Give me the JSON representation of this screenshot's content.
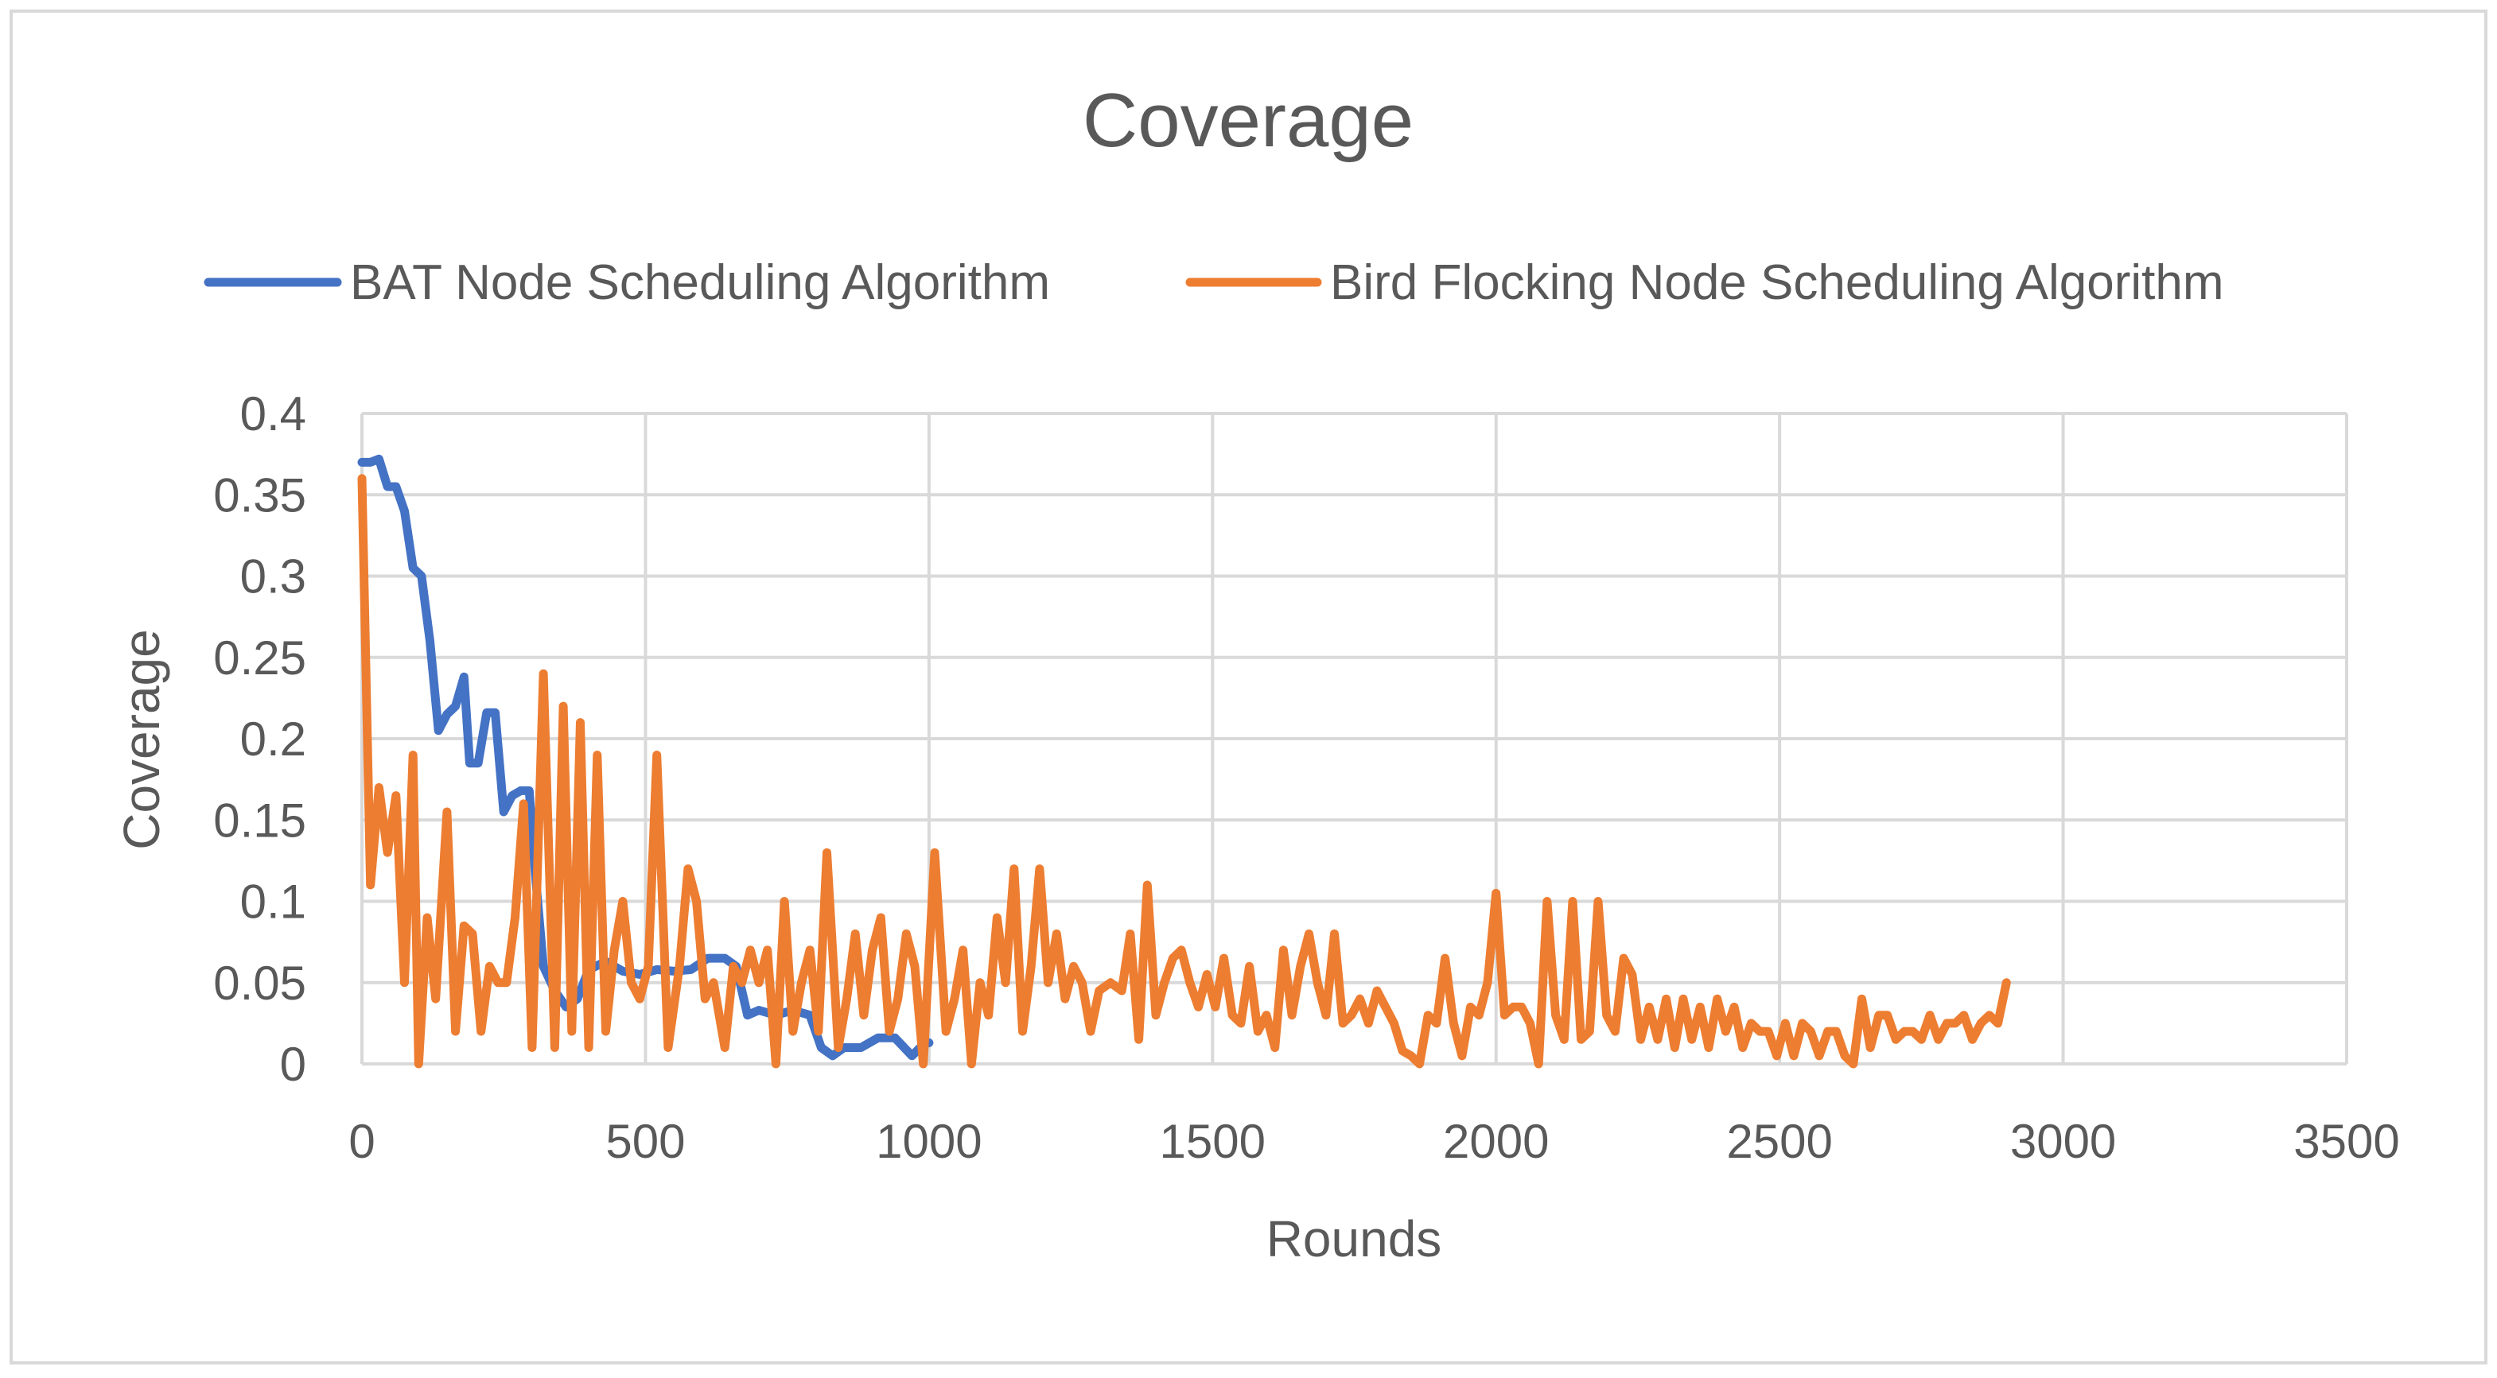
{
  "chart_data": {
    "type": "line",
    "title": "Coverage",
    "xlabel": "Rounds",
    "ylabel": "Coverage",
    "xlim": [
      0,
      3500
    ],
    "ylim": [
      0,
      0.4
    ],
    "x_ticks": [
      "0",
      "500",
      "1000",
      "1500",
      "2000",
      "2500",
      "3000",
      "3500"
    ],
    "y_ticks": [
      "0",
      "0.05",
      "0.1",
      "0.15",
      "0.2",
      "0.25",
      "0.3",
      "0.35",
      "0.4"
    ],
    "grid": true,
    "legend_position": "top",
    "series": [
      {
        "name": "BAT Node Scheduling Algorithm",
        "color": "#4472C4",
        "points": [
          [
            0,
            0.37
          ],
          [
            15,
            0.37
          ],
          [
            30,
            0.372
          ],
          [
            45,
            0.355
          ],
          [
            60,
            0.355
          ],
          [
            75,
            0.34
          ],
          [
            90,
            0.305
          ],
          [
            105,
            0.3
          ],
          [
            120,
            0.26
          ],
          [
            135,
            0.205
          ],
          [
            150,
            0.215
          ],
          [
            165,
            0.22
          ],
          [
            180,
            0.238
          ],
          [
            190,
            0.185
          ],
          [
            205,
            0.185
          ],
          [
            220,
            0.216
          ],
          [
            235,
            0.216
          ],
          [
            250,
            0.155
          ],
          [
            265,
            0.165
          ],
          [
            280,
            0.168
          ],
          [
            295,
            0.168
          ],
          [
            305,
            0.12
          ],
          [
            320,
            0.06
          ],
          [
            340,
            0.045
          ],
          [
            360,
            0.035
          ],
          [
            380,
            0.04
          ],
          [
            400,
            0.058
          ],
          [
            430,
            0.063
          ],
          [
            460,
            0.057
          ],
          [
            490,
            0.055
          ],
          [
            520,
            0.058
          ],
          [
            550,
            0.057
          ],
          [
            580,
            0.058
          ],
          [
            610,
            0.065
          ],
          [
            640,
            0.065
          ],
          [
            660,
            0.06
          ],
          [
            680,
            0.03
          ],
          [
            700,
            0.033
          ],
          [
            730,
            0.03
          ],
          [
            760,
            0.033
          ],
          [
            790,
            0.03
          ],
          [
            810,
            0.01
          ],
          [
            830,
            0.005
          ],
          [
            850,
            0.01
          ],
          [
            880,
            0.01
          ],
          [
            910,
            0.016
          ],
          [
            940,
            0.016
          ],
          [
            970,
            0.005
          ],
          [
            990,
            0.012
          ],
          [
            1000,
            0.013
          ]
        ]
      },
      {
        "name": "Bird Flocking Node Scheduling Algorithm",
        "color": "#ED7D31",
        "points": [
          [
            0,
            0.36
          ],
          [
            15,
            0.11
          ],
          [
            30,
            0.17
          ],
          [
            45,
            0.13
          ],
          [
            60,
            0.165
          ],
          [
            75,
            0.05
          ],
          [
            90,
            0.19
          ],
          [
            100,
            0.0
          ],
          [
            115,
            0.09
          ],
          [
            130,
            0.04
          ],
          [
            150,
            0.155
          ],
          [
            165,
            0.02
          ],
          [
            180,
            0.085
          ],
          [
            195,
            0.08
          ],
          [
            210,
            0.02
          ],
          [
            225,
            0.06
          ],
          [
            240,
            0.05
          ],
          [
            255,
            0.05
          ],
          [
            270,
            0.09
          ],
          [
            285,
            0.16
          ],
          [
            300,
            0.01
          ],
          [
            320,
            0.24
          ],
          [
            340,
            0.01
          ],
          [
            355,
            0.22
          ],
          [
            370,
            0.02
          ],
          [
            385,
            0.21
          ],
          [
            400,
            0.01
          ],
          [
            415,
            0.19
          ],
          [
            430,
            0.02
          ],
          [
            445,
            0.07
          ],
          [
            460,
            0.1
          ],
          [
            475,
            0.05
          ],
          [
            490,
            0.04
          ],
          [
            505,
            0.06
          ],
          [
            520,
            0.19
          ],
          [
            540,
            0.01
          ],
          [
            560,
            0.06
          ],
          [
            575,
            0.12
          ],
          [
            590,
            0.1
          ],
          [
            605,
            0.04
          ],
          [
            620,
            0.05
          ],
          [
            640,
            0.01
          ],
          [
            655,
            0.06
          ],
          [
            670,
            0.05
          ],
          [
            685,
            0.07
          ],
          [
            700,
            0.05
          ],
          [
            715,
            0.07
          ],
          [
            730,
            0.0
          ],
          [
            745,
            0.1
          ],
          [
            760,
            0.02
          ],
          [
            775,
            0.05
          ],
          [
            790,
            0.07
          ],
          [
            805,
            0.02
          ],
          [
            820,
            0.13
          ],
          [
            840,
            0.01
          ],
          [
            855,
            0.04
          ],
          [
            870,
            0.08
          ],
          [
            885,
            0.03
          ],
          [
            900,
            0.07
          ],
          [
            915,
            0.09
          ],
          [
            930,
            0.02
          ],
          [
            945,
            0.04
          ],
          [
            960,
            0.08
          ],
          [
            975,
            0.06
          ],
          [
            990,
            0.0
          ],
          [
            1010,
            0.13
          ],
          [
            1030,
            0.02
          ],
          [
            1045,
            0.04
          ],
          [
            1060,
            0.07
          ],
          [
            1075,
            0.0
          ],
          [
            1090,
            0.05
          ],
          [
            1105,
            0.03
          ],
          [
            1120,
            0.09
          ],
          [
            1135,
            0.05
          ],
          [
            1150,
            0.12
          ],
          [
            1165,
            0.02
          ],
          [
            1180,
            0.06
          ],
          [
            1195,
            0.12
          ],
          [
            1210,
            0.05
          ],
          [
            1225,
            0.08
          ],
          [
            1240,
            0.04
          ],
          [
            1255,
            0.06
          ],
          [
            1270,
            0.05
          ],
          [
            1285,
            0.02
          ],
          [
            1300,
            0.045
          ],
          [
            1320,
            0.05
          ],
          [
            1340,
            0.045
          ],
          [
            1355,
            0.08
          ],
          [
            1370,
            0.015
          ],
          [
            1385,
            0.11
          ],
          [
            1400,
            0.03
          ],
          [
            1415,
            0.05
          ],
          [
            1430,
            0.065
          ],
          [
            1445,
            0.07
          ],
          [
            1460,
            0.05
          ],
          [
            1475,
            0.035
          ],
          [
            1490,
            0.055
          ],
          [
            1505,
            0.035
          ],
          [
            1520,
            0.065
          ],
          [
            1535,
            0.03
          ],
          [
            1550,
            0.025
          ],
          [
            1565,
            0.06
          ],
          [
            1580,
            0.02
          ],
          [
            1595,
            0.03
          ],
          [
            1610,
            0.01
          ],
          [
            1625,
            0.07
          ],
          [
            1640,
            0.03
          ],
          [
            1655,
            0.06
          ],
          [
            1670,
            0.08
          ],
          [
            1685,
            0.05
          ],
          [
            1700,
            0.03
          ],
          [
            1715,
            0.08
          ],
          [
            1730,
            0.025
          ],
          [
            1745,
            0.03
          ],
          [
            1760,
            0.04
          ],
          [
            1775,
            0.025
          ],
          [
            1790,
            0.045
          ],
          [
            1805,
            0.035
          ],
          [
            1820,
            0.025
          ],
          [
            1835,
            0.008
          ],
          [
            1850,
            0.005
          ],
          [
            1865,
            0.0
          ],
          [
            1880,
            0.03
          ],
          [
            1895,
            0.025
          ],
          [
            1910,
            0.065
          ],
          [
            1925,
            0.025
          ],
          [
            1940,
            0.005
          ],
          [
            1955,
            0.035
          ],
          [
            1970,
            0.03
          ],
          [
            1985,
            0.05
          ],
          [
            2000,
            0.105
          ],
          [
            2015,
            0.03
          ],
          [
            2030,
            0.035
          ],
          [
            2045,
            0.035
          ],
          [
            2060,
            0.025
          ],
          [
            2075,
            0.0
          ],
          [
            2090,
            0.1
          ],
          [
            2105,
            0.03
          ],
          [
            2120,
            0.015
          ],
          [
            2135,
            0.1
          ],
          [
            2150,
            0.015
          ],
          [
            2165,
            0.02
          ],
          [
            2180,
            0.1
          ],
          [
            2195,
            0.03
          ],
          [
            2210,
            0.02
          ],
          [
            2225,
            0.065
          ],
          [
            2240,
            0.055
          ],
          [
            2255,
            0.015
          ],
          [
            2270,
            0.035
          ],
          [
            2285,
            0.015
          ],
          [
            2300,
            0.04
          ],
          [
            2315,
            0.01
          ],
          [
            2330,
            0.04
          ],
          [
            2345,
            0.015
          ],
          [
            2360,
            0.035
          ],
          [
            2375,
            0.01
          ],
          [
            2390,
            0.04
          ],
          [
            2405,
            0.02
          ],
          [
            2420,
            0.035
          ],
          [
            2435,
            0.01
          ],
          [
            2450,
            0.025
          ],
          [
            2465,
            0.02
          ],
          [
            2480,
            0.02
          ],
          [
            2495,
            0.005
          ],
          [
            2510,
            0.025
          ],
          [
            2525,
            0.005
          ],
          [
            2540,
            0.025
          ],
          [
            2555,
            0.02
          ],
          [
            2570,
            0.005
          ],
          [
            2585,
            0.02
          ],
          [
            2600,
            0.02
          ],
          [
            2615,
            0.005
          ],
          [
            2630,
            0.0
          ],
          [
            2645,
            0.04
          ],
          [
            2660,
            0.01
          ],
          [
            2675,
            0.03
          ],
          [
            2690,
            0.03
          ],
          [
            2705,
            0.015
          ],
          [
            2720,
            0.02
          ],
          [
            2735,
            0.02
          ],
          [
            2750,
            0.015
          ],
          [
            2765,
            0.03
          ],
          [
            2780,
            0.015
          ],
          [
            2795,
            0.025
          ],
          [
            2810,
            0.025
          ],
          [
            2825,
            0.03
          ],
          [
            2840,
            0.015
          ],
          [
            2855,
            0.025
          ],
          [
            2870,
            0.03
          ],
          [
            2885,
            0.025
          ],
          [
            2900,
            0.05
          ]
        ]
      }
    ]
  }
}
